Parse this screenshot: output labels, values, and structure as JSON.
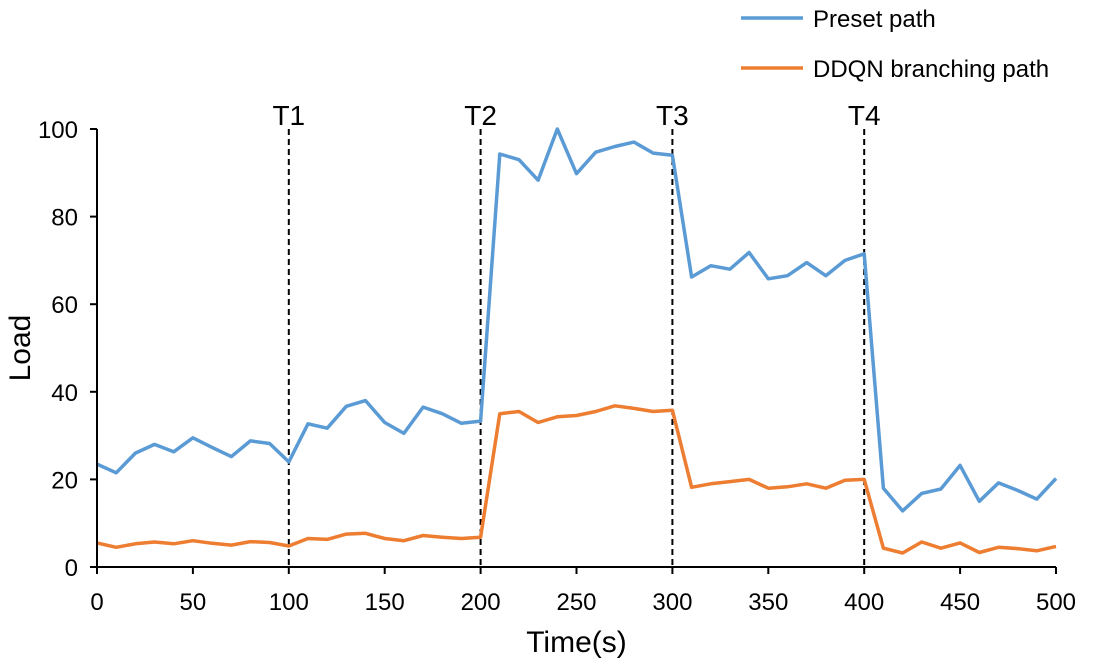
{
  "chart_data": {
    "type": "line",
    "title": "",
    "xlabel": "Time(s)",
    "ylabel": "Load",
    "xlim": [
      0,
      500
    ],
    "ylim": [
      0,
      100
    ],
    "xticks": [
      0,
      50,
      100,
      150,
      200,
      250,
      300,
      350,
      400,
      450,
      500
    ],
    "yticks": [
      0,
      20,
      40,
      60,
      80,
      100
    ],
    "grid": false,
    "legend_position": "top-right",
    "x": [
      0,
      10,
      20,
      30,
      40,
      50,
      60,
      70,
      80,
      90,
      100,
      110,
      120,
      130,
      140,
      150,
      160,
      170,
      180,
      190,
      200,
      210,
      220,
      230,
      240,
      250,
      260,
      270,
      280,
      290,
      300,
      310,
      320,
      330,
      340,
      350,
      360,
      370,
      380,
      390,
      400,
      410,
      420,
      430,
      440,
      450,
      460,
      470,
      480,
      490,
      500
    ],
    "series": [
      {
        "name": "Preset path",
        "color": "#5b9bd5",
        "values": [
          23.5,
          21.5,
          26,
          28,
          26.3,
          29.5,
          27.3,
          25.2,
          28.8,
          28.2,
          24,
          32.7,
          31.7,
          36.7,
          38,
          33,
          30.5,
          36.5,
          35,
          32.8,
          33.3,
          94.3,
          93,
          88.3,
          100,
          89.8,
          94.7,
          96,
          97,
          94.5,
          94,
          66.2,
          68.8,
          68,
          71.8,
          65.8,
          66.5,
          69.5,
          66.5,
          70,
          71.5,
          18,
          12.8,
          16.8,
          17.8,
          23.2,
          15,
          19.2,
          17.5,
          15.5,
          20.2
        ]
      },
      {
        "name": "DDQN branching path",
        "color": "#ed7d31",
        "values": [
          5.5,
          4.5,
          5.3,
          5.7,
          5.3,
          6,
          5.4,
          5,
          5.8,
          5.6,
          4.8,
          6.5,
          6.3,
          7.5,
          7.7,
          6.5,
          6,
          7.2,
          6.8,
          6.5,
          6.8,
          35,
          35.5,
          33,
          34.3,
          34.6,
          35.5,
          36.8,
          36.2,
          35.5,
          35.8,
          18.2,
          19,
          19.5,
          20,
          18,
          18.3,
          19,
          18,
          19.8,
          20,
          4.3,
          3.2,
          5.7,
          4.3,
          5.5,
          3.3,
          4.5,
          4.2,
          3.7,
          4.7
        ]
      }
    ],
    "markers": [
      {
        "label": "T1",
        "x": 100
      },
      {
        "label": "T2",
        "x": 200
      },
      {
        "label": "T3",
        "x": 300
      },
      {
        "label": "T4",
        "x": 400
      }
    ]
  }
}
